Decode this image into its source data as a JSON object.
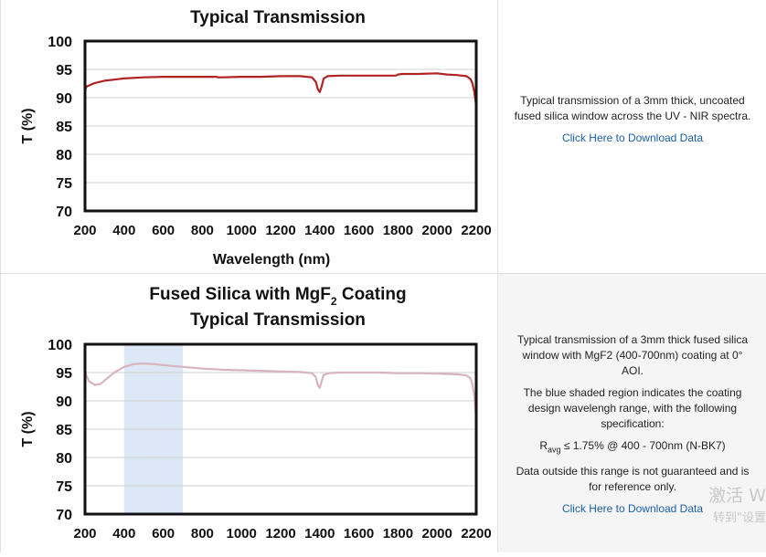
{
  "chart_data": [
    {
      "type": "line",
      "title": "Typical Transmission",
      "xlabel": "Wavelength (nm)",
      "ylabel": "T (%)",
      "xlim": [
        200,
        2200
      ],
      "ylim": [
        70,
        100
      ],
      "xticks": [
        200,
        400,
        600,
        800,
        1000,
        1200,
        1400,
        1600,
        1800,
        2000,
        2200
      ],
      "yticks": [
        70,
        75,
        80,
        85,
        90,
        95,
        100
      ],
      "grid": true,
      "series": [
        {
          "color": "#b22222",
          "x": [
            200,
            210,
            250,
            300,
            400,
            500,
            600,
            700,
            800,
            870,
            880,
            900,
            1000,
            1100,
            1200,
            1300,
            1360,
            1380,
            1390,
            1400,
            1410,
            1420,
            1440,
            1500,
            1600,
            1700,
            1790,
            1800,
            1820,
            1900,
            2000,
            2050,
            2100,
            2150,
            2170,
            2180,
            2190,
            2200
          ],
          "y": [
            91.5,
            92.0,
            92.6,
            93.0,
            93.4,
            93.6,
            93.7,
            93.7,
            93.7,
            93.7,
            93.6,
            93.6,
            93.7,
            93.7,
            93.8,
            93.8,
            93.6,
            92.8,
            91.5,
            91.0,
            92.0,
            93.4,
            93.8,
            93.9,
            93.9,
            93.9,
            93.9,
            94.1,
            94.2,
            94.2,
            94.3,
            94.1,
            94.0,
            93.8,
            93.3,
            92.6,
            91.0,
            88.5
          ]
        }
      ]
    },
    {
      "type": "line",
      "title_line1": "Fused Silica with MgF",
      "title_sub": "2",
      "title_line1_end": " Coating",
      "title_line2": "Typical Transmission",
      "xlabel": "",
      "ylabel": "T (%)",
      "xlim": [
        200,
        2200
      ],
      "ylim": [
        70,
        100
      ],
      "xticks": [
        200,
        400,
        600,
        800,
        1000,
        1200,
        1400,
        1600,
        1800,
        2000,
        2200
      ],
      "yticks": [
        70,
        75,
        80,
        85,
        90,
        95,
        100
      ],
      "grid": true,
      "shaded_region": {
        "x": [
          400,
          700
        ],
        "color": "#dce8f5"
      },
      "series": [
        {
          "color": "#d8b4bf",
          "x": [
            200,
            220,
            250,
            280,
            300,
            350,
            400,
            450,
            500,
            550,
            600,
            700,
            800,
            900,
            1000,
            1100,
            1200,
            1300,
            1360,
            1380,
            1390,
            1400,
            1410,
            1420,
            1450,
            1500,
            1600,
            1700,
            1800,
            1900,
            2000,
            2100,
            2150,
            2170,
            2180,
            2190,
            2200
          ],
          "y": [
            95.0,
            93.5,
            92.8,
            93.0,
            93.6,
            95.0,
            96.0,
            96.5,
            96.6,
            96.5,
            96.3,
            96.0,
            95.7,
            95.5,
            95.4,
            95.3,
            95.2,
            95.1,
            94.9,
            94.2,
            92.8,
            92.3,
            93.5,
            94.6,
            94.9,
            95.0,
            95.0,
            95.0,
            94.9,
            94.9,
            94.8,
            94.7,
            94.5,
            94.0,
            93.0,
            91.0,
            86.5
          ]
        }
      ]
    }
  ],
  "panels": [
    {
      "description": [
        "Typical transmission of a 3mm thick, uncoated fused silica window across the UV - NIR spectra."
      ],
      "link": "Click Here to Download Data"
    },
    {
      "description": [
        "Typical transmission of a 3mm thick fused silica window with MgF2 (400-700nm) coating at 0° AOI.",
        "The blue shaded region indicates the coating design wavelengh range, with the following specification:"
      ],
      "spec": {
        "prefix": "R",
        "sub": "avg",
        "text": " ≤ 1.75% @ 400 - 700nm (N-BK7)"
      },
      "note": "Data outside this range is not guaranteed and is for reference only.",
      "link": "Click Here to Download Data"
    }
  ],
  "watermark": {
    "line1": "激活 W",
    "line2": "转到\"设置"
  }
}
